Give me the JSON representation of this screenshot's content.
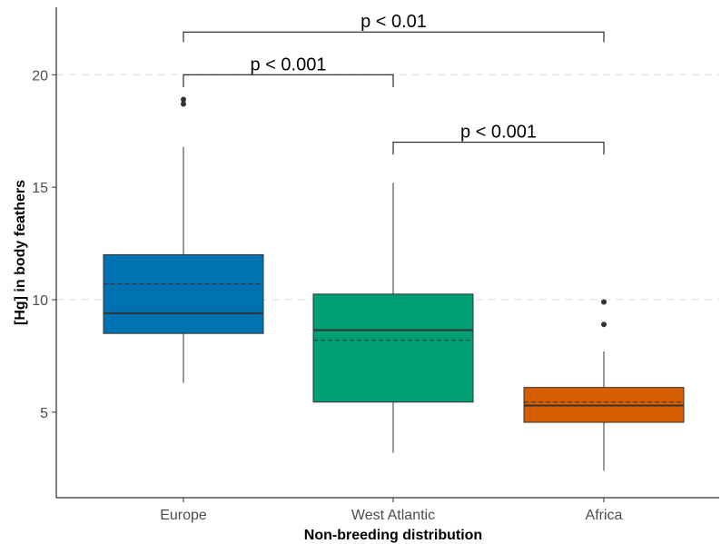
{
  "chart_data": {
    "type": "boxplot",
    "title": "",
    "xlabel": "Non-breeding distribution",
    "ylabel": "[Hg] in body feathers",
    "ylim": [
      1.2,
      23.0
    ],
    "yticks": [
      5,
      10,
      15,
      20
    ],
    "grid": "horizontal dashed at y ticks 10 and 20",
    "legend": "none",
    "categories": [
      "Europe",
      "West Atlantic",
      "Africa"
    ],
    "boxes": [
      {
        "category": "Europe",
        "color": "#0072B2",
        "q1": 8.5,
        "median": 9.4,
        "q3": 12.0,
        "whisker_low": 6.3,
        "whisker_high": 16.8,
        "mean": 10.7,
        "outliers": [
          18.7,
          18.9
        ]
      },
      {
        "category": "West Atlantic",
        "color": "#009E73",
        "q1": 5.45,
        "median": 8.65,
        "q3": 10.25,
        "whisker_low": 3.2,
        "whisker_high": 15.2,
        "mean": 8.2,
        "outliers": []
      },
      {
        "category": "Africa",
        "color": "#D55E00",
        "q1": 4.55,
        "median": 5.3,
        "q3": 6.1,
        "whisker_low": 2.4,
        "whisker_high": 7.7,
        "mean": 5.45,
        "outliers": [
          8.9,
          9.9
        ]
      }
    ],
    "significance": [
      {
        "from": 0,
        "to": 2,
        "y": 21.9,
        "drop_left": 21.45,
        "drop_right": 21.45,
        "label": "p < 0.01"
      },
      {
        "from": 0,
        "to": 1,
        "y": 20.0,
        "drop_left": 19.45,
        "drop_right": 19.45,
        "label": "p < 0.001"
      },
      {
        "from": 1,
        "to": 2,
        "y": 17.0,
        "drop_left": 16.45,
        "drop_right": 16.45,
        "label": "p < 0.001"
      }
    ]
  }
}
